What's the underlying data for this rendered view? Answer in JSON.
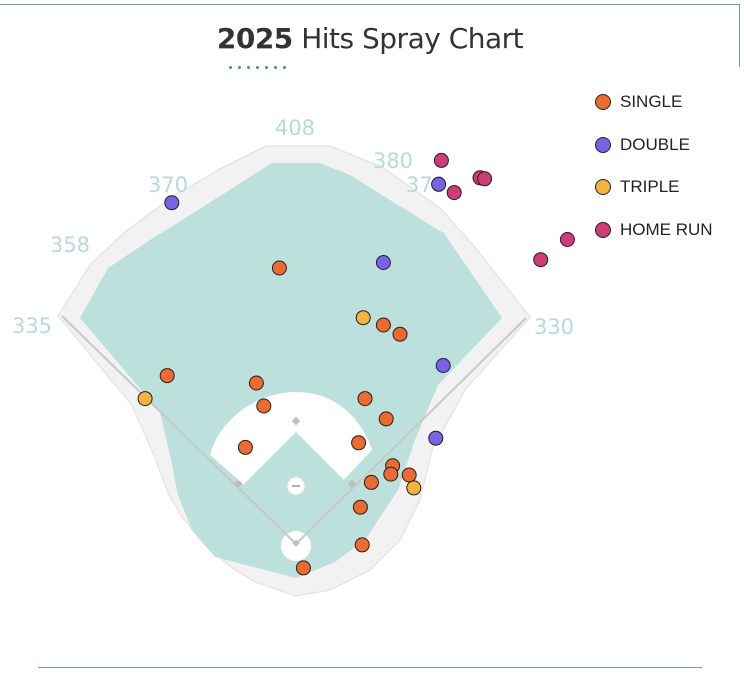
{
  "title": {
    "year": "2025",
    "rest": "Hits Spray Chart"
  },
  "colors": {
    "single": "#ef6a2e",
    "double": "#7a62e8",
    "triple": "#f4b23e",
    "home_run": "#d03c77",
    "grass": "#bce0dc",
    "warning_track": "#f2f2f2"
  },
  "legend": [
    {
      "key": "single",
      "label": "SINGLE"
    },
    {
      "key": "double",
      "label": "DOUBLE"
    },
    {
      "key": "triple",
      "label": "TRIPLE"
    },
    {
      "key": "home_run",
      "label": "HOME RUN"
    }
  ],
  "wall_distances": [
    "335",
    "358",
    "370",
    "408",
    "380",
    "370",
    "330"
  ],
  "chart_data": {
    "type": "scatter",
    "title": "2025 Hits Spray Chart",
    "units": "feet",
    "note": "x = feet toward right field (negative = left field), y = feet from home plate toward center field",
    "series": [
      {
        "name": "SINGLE",
        "points": [
          [
            -18,
            300
          ],
          [
            -140,
            183
          ],
          [
            -43,
            175
          ],
          [
            -35,
            150
          ],
          [
            -55,
            105
          ],
          [
            68,
            110
          ],
          [
            75,
            158
          ],
          [
            95,
            238
          ],
          [
            113,
            228
          ],
          [
            98,
            136
          ],
          [
            105,
            85
          ],
          [
            103,
            76
          ],
          [
            123,
            75
          ],
          [
            82,
            67
          ],
          [
            70,
            40
          ],
          [
            72,
            -1
          ],
          [
            8,
            -26
          ]
        ]
      },
      {
        "name": "DOUBLE",
        "points": [
          [
            -135,
            371
          ],
          [
            95,
            306
          ],
          [
            155,
            391
          ],
          [
            160,
            194
          ],
          [
            152,
            115
          ]
        ]
      },
      {
        "name": "TRIPLE",
        "points": [
          [
            -164,
            158
          ],
          [
            73,
            246
          ],
          [
            128,
            61
          ]
        ]
      },
      {
        "name": "HOME RUN",
        "points": [
          [
            158,
            417
          ],
          [
            200,
            398
          ],
          [
            205,
            397
          ],
          [
            172,
            382
          ],
          [
            266,
            309
          ],
          [
            295,
            331
          ]
        ]
      }
    ]
  }
}
